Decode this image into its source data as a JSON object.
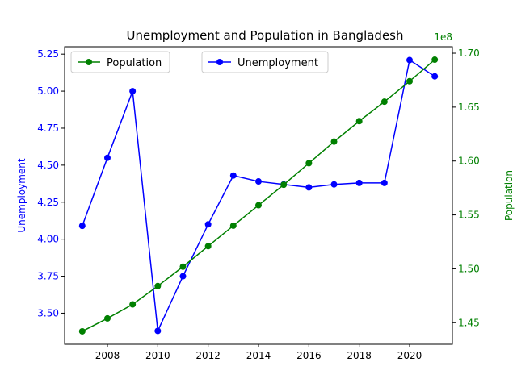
{
  "chart_data": {
    "type": "line",
    "title": "Unemployment and Population in Bangladesh",
    "x": [
      2007,
      2008,
      2009,
      2010,
      2011,
      2012,
      2013,
      2014,
      2015,
      2016,
      2017,
      2018,
      2019,
      2020,
      2021
    ],
    "x_ticks": [
      "2008",
      "2010",
      "2012",
      "2014",
      "2016",
      "2018",
      "2020"
    ],
    "xlim": [
      2006.3,
      2021.7
    ],
    "series": [
      {
        "name": "Unemployment",
        "axis": "left",
        "color": "#0000ff",
        "marker": "circle",
        "values": [
          4.09,
          4.55,
          5.0,
          3.38,
          3.75,
          4.1,
          4.43,
          4.39,
          4.37,
          4.35,
          4.37,
          4.38,
          4.38,
          5.21,
          5.1
        ]
      },
      {
        "name": "Population",
        "axis": "right",
        "color": "#008000",
        "marker": "circle",
        "values": [
          144200000,
          145400000,
          146700000,
          148400000,
          150200000,
          152100000,
          154000000,
          155900000,
          157800000,
          159800000,
          161800000,
          163700000,
          165500000,
          167400000,
          169400000
        ]
      }
    ],
    "y_left": {
      "label": "Unemployment",
      "color": "#0000ff",
      "ylim": [
        3.29,
        5.3
      ],
      "ticks": [
        "3.50",
        "3.75",
        "4.00",
        "4.25",
        "4.50",
        "4.75",
        "5.00",
        "5.25"
      ]
    },
    "y_right": {
      "label": "Population",
      "color": "#008000",
      "ylim": [
        143000000,
        170600000
      ],
      "ticks": [
        "1.45",
        "1.50",
        "1.55",
        "1.60",
        "1.65",
        "1.70"
      ],
      "offset_text": "1e8"
    },
    "grid": false,
    "legends": [
      {
        "placement": "upper-left",
        "entries": [
          "Population"
        ]
      },
      {
        "placement": "upper-center",
        "entries": [
          "Unemployment"
        ]
      }
    ]
  }
}
